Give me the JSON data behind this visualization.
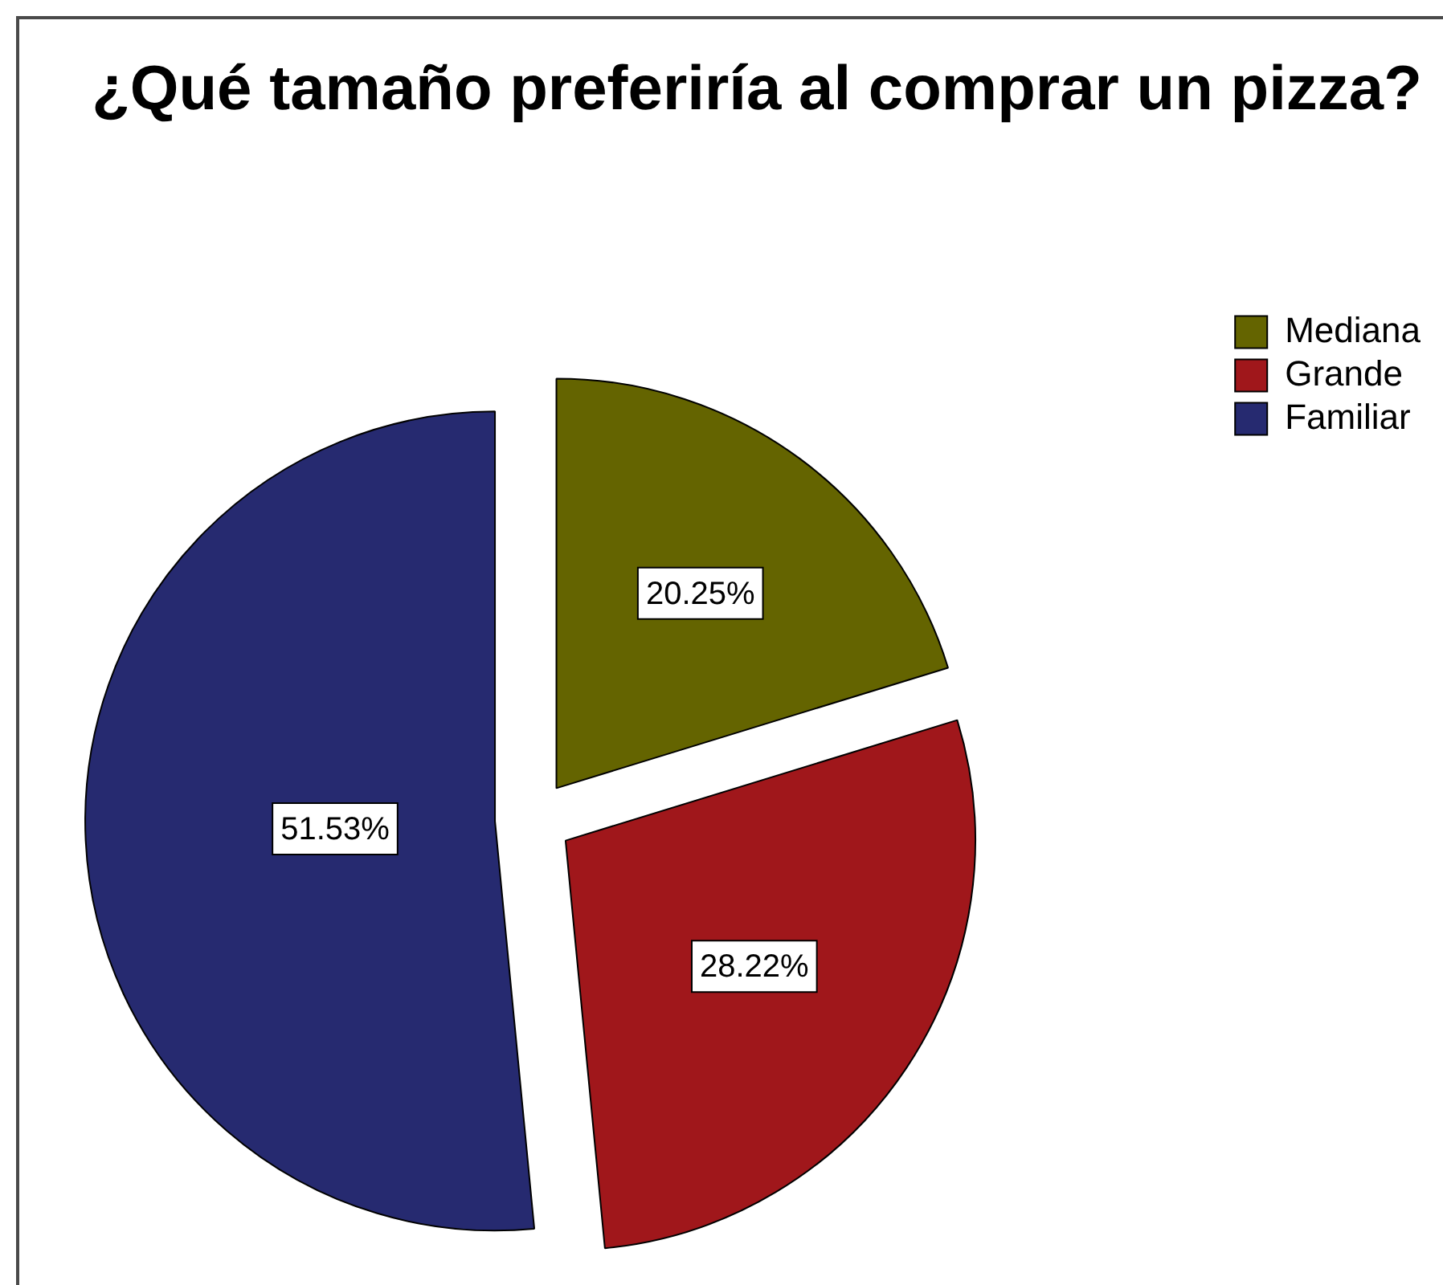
{
  "chart_data": {
    "type": "pie",
    "title": "¿Qué tamaño preferiría al comprar un pizza?",
    "categories": [
      "Mediana",
      "Grande",
      "Familiar"
    ],
    "values": [
      20.25,
      28.22,
      51.53
    ],
    "colors": [
      "#646400",
      "#a0171b",
      "#262a70"
    ],
    "value_labels": [
      "20.25%",
      "28.22%",
      "51.53%"
    ],
    "legend": "top right"
  }
}
